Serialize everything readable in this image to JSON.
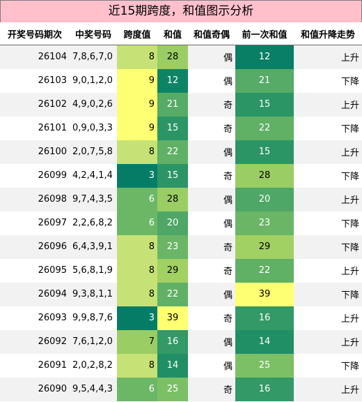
{
  "title": "近15期跨度，和值图示分析",
  "headers": [
    "开奖号码期次",
    "中奖号码",
    "跨度值",
    "和值",
    "和值奇偶",
    "前一次和值",
    "和值升降走势"
  ],
  "rows": [
    {
      "period": "26104",
      "numbers": "7,8,6,7,0",
      "span": "8",
      "sum": "28",
      "parity": "偶",
      "prev": "12",
      "trend": "上升",
      "span_color": "#c6e276",
      "sum_color": "#9acd63",
      "prev_color": "#097f66"
    },
    {
      "period": "26103",
      "numbers": "9,0,1,2,0",
      "span": "9",
      "sum": "12",
      "parity": "偶",
      "prev": "21",
      "trend": "下降",
      "span_color": "#ffff73",
      "sum_color": "#0e8466",
      "prev_color": "#56ab66"
    },
    {
      "period": "26102",
      "numbers": "4,9,0,2,6",
      "span": "9",
      "sum": "21",
      "parity": "奇",
      "prev": "15",
      "trend": "上升",
      "span_color": "#ffff73",
      "sum_color": "#56ab66",
      "prev_color": "#2b9566"
    },
    {
      "period": "26101",
      "numbers": "0,9,0,3,3",
      "span": "9",
      "sum": "15",
      "parity": "奇",
      "prev": "22",
      "trend": "下降",
      "span_color": "#ffff73",
      "sum_color": "#2b9566",
      "prev_color": "#60b066"
    },
    {
      "period": "26100",
      "numbers": "2,0,7,5,8",
      "span": "8",
      "sum": "22",
      "parity": "偶",
      "prev": "15",
      "trend": "上升",
      "span_color": "#c6e276",
      "sum_color": "#60b066",
      "prev_color": "#2b9566"
    },
    {
      "period": "26099",
      "numbers": "4,2,4,1,4",
      "span": "3",
      "sum": "15",
      "parity": "奇",
      "prev": "28",
      "trend": "下降",
      "span_color": "#057d66",
      "sum_color": "#2b9566",
      "prev_color": "#9acd63"
    },
    {
      "period": "26098",
      "numbers": "9,7,4,3,5",
      "span": "6",
      "sum": "28",
      "parity": "偶",
      "prev": "20",
      "trend": "上升",
      "span_color": "#6cb766",
      "sum_color": "#9acd63",
      "prev_color": "#4ea766"
    },
    {
      "period": "26097",
      "numbers": "2,2,6,8,2",
      "span": "6",
      "sum": "20",
      "parity": "偶",
      "prev": "23",
      "trend": "下降",
      "span_color": "#6cb766",
      "sum_color": "#4ea766",
      "prev_color": "#6ab666"
    },
    {
      "period": "26096",
      "numbers": "6,4,3,9,1",
      "span": "8",
      "sum": "23",
      "parity": "奇",
      "prev": "29",
      "trend": "下降",
      "span_color": "#c6e276",
      "sum_color": "#6ab666",
      "prev_color": "#a2d163"
    },
    {
      "period": "26095",
      "numbers": "5,6,8,1,9",
      "span": "8",
      "sum": "29",
      "parity": "奇",
      "prev": "22",
      "trend": "上升",
      "span_color": "#c6e276",
      "sum_color": "#a2d163",
      "prev_color": "#60b066"
    },
    {
      "period": "26094",
      "numbers": "9,3,8,1,1",
      "span": "8",
      "sum": "22",
      "parity": "偶",
      "prev": "39",
      "trend": "下降",
      "span_color": "#c6e276",
      "sum_color": "#60b066",
      "prev_color": "#ffff73"
    },
    {
      "period": "26093",
      "numbers": "9,9,8,7,6",
      "span": "3",
      "sum": "39",
      "parity": "奇",
      "prev": "16",
      "trend": "上升",
      "span_color": "#057d66",
      "sum_color": "#ffff73",
      "prev_color": "#339966"
    },
    {
      "period": "26092",
      "numbers": "7,6,1,2,0",
      "span": "7",
      "sum": "16",
      "parity": "偶",
      "prev": "14",
      "trend": "上升",
      "span_color": "#9acd63",
      "sum_color": "#339966",
      "prev_color": "#218f66"
    },
    {
      "period": "26091",
      "numbers": "2,0,2,8,2",
      "span": "8",
      "sum": "14",
      "parity": "偶",
      "prev": "25",
      "trend": "下降",
      "span_color": "#c6e276",
      "sum_color": "#218f66",
      "prev_color": "#7cc066"
    },
    {
      "period": "26090",
      "numbers": "9,5,4,4,3",
      "span": "6",
      "sum": "25",
      "parity": "奇",
      "prev": "16",
      "trend": "上升",
      "span_color": "#6cb766",
      "sum_color": "#7cc066",
      "prev_color": "#339966"
    }
  ]
}
